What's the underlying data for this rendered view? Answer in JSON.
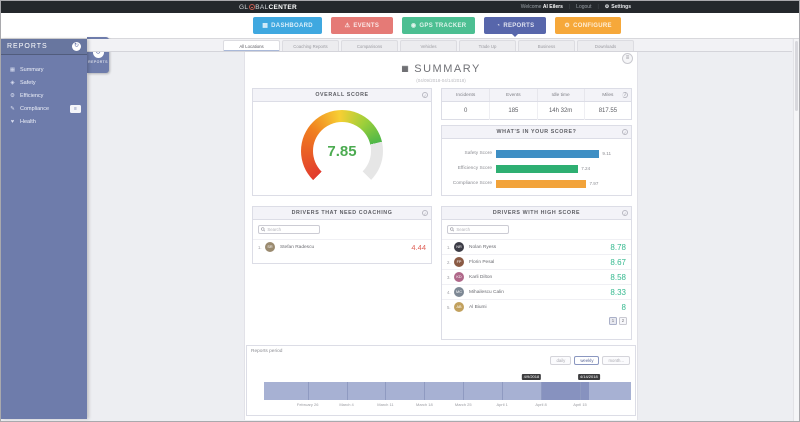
{
  "topbar": {
    "logo": {
      "prefix": "GL",
      "mid": "BAL",
      "suffix": "CENTER"
    },
    "welcome_label": "Welcome",
    "user_name": "Al Eilers",
    "logout_label": "Logout",
    "settings_label": "Settings"
  },
  "nav": {
    "items": [
      {
        "label": "DASHBOARD",
        "icon": "dashboard",
        "color": "#3fa8e0",
        "active": false
      },
      {
        "label": "EVENTS",
        "icon": "warning",
        "color": "#e57a76",
        "active": false
      },
      {
        "label": "GPS TRACKER",
        "icon": "map-pin",
        "color": "#4cbf92",
        "active": false
      },
      {
        "label": "REPORTS",
        "icon": "pie-chart",
        "color": "#5766ab",
        "active": true
      },
      {
        "label": "CONFIGURE",
        "icon": "wrench",
        "color": "#f6a83a",
        "active": false
      }
    ]
  },
  "sidebar": {
    "title": "REPORTS",
    "handle_label": "REPORTS",
    "items": [
      {
        "label": "Summary",
        "icon": "bar-chart"
      },
      {
        "label": "Safety",
        "icon": "shield"
      },
      {
        "label": "Efficiency",
        "icon": "gear"
      },
      {
        "label": "Compliance",
        "icon": "signature",
        "badge": true
      },
      {
        "label": "Health",
        "icon": "heart"
      }
    ]
  },
  "tabs": [
    {
      "label": "All Locations",
      "active": true
    },
    {
      "label": "Coaching Reports",
      "active": false
    },
    {
      "label": "Comparisons",
      "active": false
    },
    {
      "label": "Vehicles",
      "active": false
    },
    {
      "label": "Trade Up",
      "active": false
    },
    {
      "label": "Business",
      "active": false
    },
    {
      "label": "Downloads",
      "active": false
    }
  ],
  "page": {
    "title": "SUMMARY",
    "date_range": "(04/09/2018-04/14/2018)",
    "overall": {
      "title": "OVERALL SCORE",
      "value": "7.85",
      "max": 10,
      "gauge_colors": [
        "#e23b2e",
        "#f07f1f",
        "#f7cf33",
        "#9ccf3a",
        "#4db748"
      ],
      "track_color": "#e6e6e6"
    },
    "stats": {
      "columns": [
        "Incidents",
        "Events",
        "Idle time",
        "Miles"
      ],
      "values": [
        "0",
        "185",
        "14h 32m",
        "817.55"
      ]
    },
    "breakdown": {
      "title": "WHAT'S IN YOUR SCORE?",
      "rows": [
        {
          "label": "Safety Score",
          "value": 9.11,
          "display": "9.11",
          "color": "#3f8fc4"
        },
        {
          "label": "Efficiency Score",
          "value": 7.24,
          "display": "7.24",
          "color": "#2eaf72"
        },
        {
          "label": "Compliance Score",
          "value": 7.97,
          "display": "7.97",
          "color": "#f2a33a"
        }
      ]
    },
    "coaching": {
      "title": "DRIVERS THAT NEED COACHING",
      "search_placeholder": "Search",
      "drivers": [
        {
          "rank": "1.",
          "name": "Stefan Radescu",
          "score": "4.44",
          "initials": "SR",
          "avatar_color": "#9a8a6f"
        }
      ]
    },
    "high": {
      "title": "DRIVERS WITH HIGH SCORE",
      "search_placeholder": "Search",
      "drivers": [
        {
          "rank": "1.",
          "name": "Nolan Ryess",
          "score": "8.78",
          "initials": "NR",
          "avatar_color": "#3c3c46"
        },
        {
          "rank": "2.",
          "name": "Florin Pesal",
          "score": "8.67",
          "initials": "FP",
          "avatar_color": "#8a5a44"
        },
        {
          "rank": "3.",
          "name": "Karli Dilton",
          "score": "8.58",
          "initials": "KD",
          "avatar_color": "#b0688a"
        },
        {
          "rank": "4.",
          "name": "Mihailescu Calin",
          "score": "8.33",
          "initials": "MC",
          "avatar_color": "#7d8894"
        },
        {
          "rank": "5.",
          "name": "Al Biumi",
          "score": "8",
          "initials": "AB",
          "avatar_color": "#c2a15e"
        }
      ],
      "pagination": [
        "1",
        "2"
      ]
    },
    "period": {
      "label": "Reports period",
      "buttons": [
        {
          "label": "daily",
          "active": false
        },
        {
          "label": "weekly",
          "active": true
        },
        {
          "label": "month...",
          "active": false
        }
      ],
      "selection": {
        "start_label": "4/9/2018",
        "end_label": "4/14/2018"
      },
      "axis_labels": [
        "February 26",
        "March 4",
        "March 11",
        "March 18",
        "March 25",
        "April 1",
        "April 8",
        "April 15"
      ]
    }
  },
  "chart_data": [
    {
      "type": "gauge",
      "title": "OVERALL SCORE",
      "value": 7.85,
      "range": [
        0,
        10
      ]
    },
    {
      "type": "bar",
      "orientation": "horizontal",
      "title": "WHAT'S IN YOUR SCORE?",
      "categories": [
        "Safety Score",
        "Efficiency Score",
        "Compliance Score"
      ],
      "values": [
        9.11,
        7.24,
        7.97
      ],
      "xlim": [
        0,
        10
      ],
      "grid": false,
      "legend": false
    },
    {
      "type": "timeline",
      "title": "Reports period",
      "granularity": "weekly",
      "axis_labels": [
        "February 26",
        "March 4",
        "March 11",
        "March 18",
        "March 25",
        "April 1",
        "April 8",
        "April 15"
      ],
      "selected_range": [
        "4/9/2018",
        "4/14/2018"
      ]
    }
  ]
}
